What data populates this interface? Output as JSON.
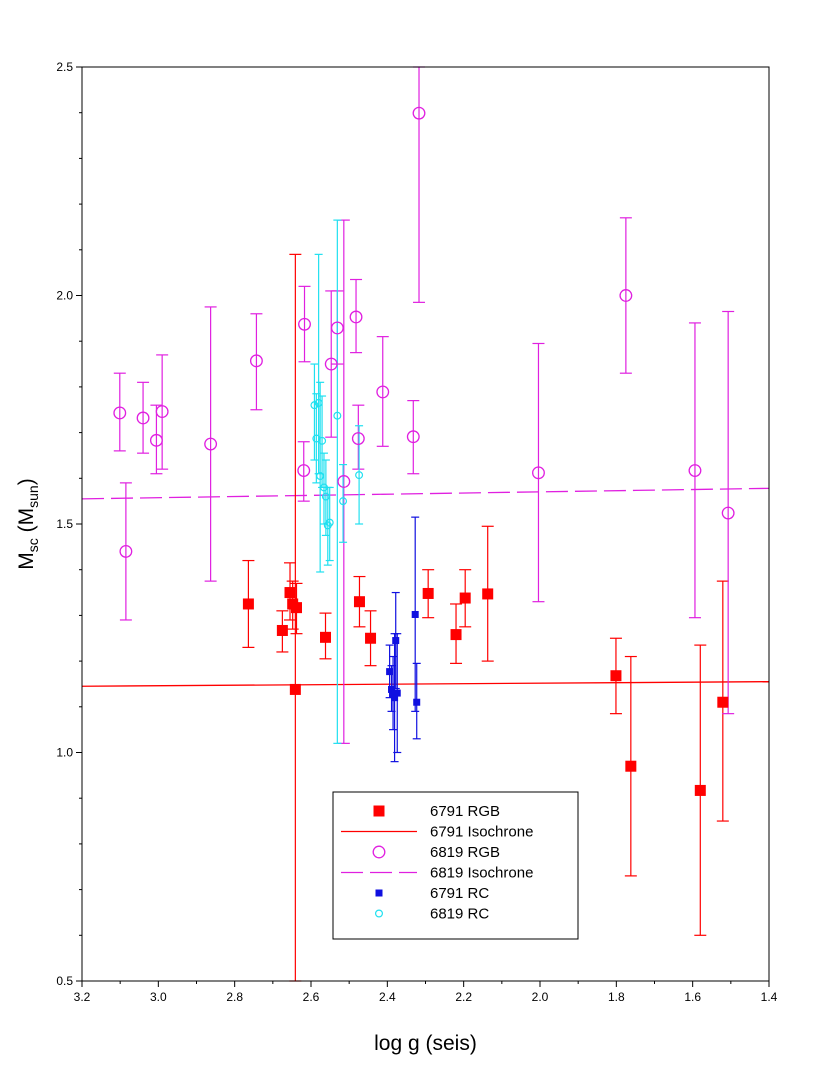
{
  "chart_data": {
    "type": "scatter",
    "title": "",
    "xlabel": "log g (seis)",
    "ylabel": "M",
    "ylabel_sub1": "sc",
    "ylabel_mid": " (M",
    "ylabel_sub2": "sun",
    "ylabel_end": ")",
    "xlim": [
      3.2,
      1.4
    ],
    "ylim": [
      0.5,
      2.5
    ],
    "x_reversed": true,
    "xticks": [
      3.2,
      3.0,
      2.8,
      2.6,
      2.4,
      2.2,
      2.0,
      1.8,
      1.6,
      1.4
    ],
    "xtick_labels": [
      "3.2",
      "3.0",
      "2.8",
      "2.6",
      "2.4",
      "2.2",
      "2.0",
      "1.8",
      "1.6",
      "1.4"
    ],
    "yticks": [
      0.5,
      1.0,
      1.5,
      2.0,
      2.5
    ],
    "ytick_labels": [
      "0.5",
      "1.0",
      "1.5",
      "2.0",
      "2.5"
    ],
    "legend_position": "bottom-center",
    "colors": {
      "rgb_6791": "#ff0000",
      "rgb_6819": "#e020e0",
      "rc_6791": "#1010e0",
      "rc_6819": "#20e0f0"
    },
    "lines": [
      {
        "name": "6791 Isochrone",
        "color": "#ff0000",
        "dash": "solid",
        "x": [
          3.2,
          1.4
        ],
        "y": [
          1.145,
          1.155
        ]
      },
      {
        "name": "6819 Isochrone",
        "color": "#e020e0",
        "dash": "dashed",
        "x": [
          3.2,
          1.4
        ],
        "y": [
          1.555,
          1.578
        ]
      }
    ],
    "series": [
      {
        "name": "6791 RGB",
        "marker": "filled-square",
        "color": "#ff0000",
        "points": [
          {
            "x": 2.764,
            "y": 1.325,
            "lo": 1.23,
            "hi": 1.42
          },
          {
            "x": 2.675,
            "y": 1.267,
            "lo": 1.22,
            "hi": 1.31
          },
          {
            "x": 2.655,
            "y": 1.35,
            "lo": 1.29,
            "hi": 1.415
          },
          {
            "x": 2.648,
            "y": 1.325,
            "lo": 1.27,
            "hi": 1.375
          },
          {
            "x": 2.638,
            "y": 1.317,
            "lo": 1.26,
            "hi": 1.37
          },
          {
            "x": 2.641,
            "y": 1.138,
            "lo": 0.5,
            "hi": 2.09
          },
          {
            "x": 2.562,
            "y": 1.252,
            "lo": 1.205,
            "hi": 1.305
          },
          {
            "x": 2.473,
            "y": 1.33,
            "lo": 1.275,
            "hi": 1.385
          },
          {
            "x": 2.444,
            "y": 1.25,
            "lo": 1.19,
            "hi": 1.31
          },
          {
            "x": 2.293,
            "y": 1.348,
            "lo": 1.295,
            "hi": 1.4
          },
          {
            "x": 2.22,
            "y": 1.258,
            "lo": 1.195,
            "hi": 1.325
          },
          {
            "x": 2.196,
            "y": 1.338,
            "lo": 1.275,
            "hi": 1.4
          },
          {
            "x": 2.137,
            "y": 1.347,
            "lo": 1.2,
            "hi": 1.495
          },
          {
            "x": 1.801,
            "y": 1.168,
            "lo": 1.085,
            "hi": 1.25
          },
          {
            "x": 1.762,
            "y": 0.97,
            "lo": 0.73,
            "hi": 1.21
          },
          {
            "x": 1.58,
            "y": 0.917,
            "lo": 0.6,
            "hi": 1.235
          },
          {
            "x": 1.521,
            "y": 1.11,
            "lo": 0.85,
            "hi": 1.375
          }
        ]
      },
      {
        "name": "6819 RGB",
        "marker": "open-circle",
        "color": "#e020e0",
        "points": [
          {
            "x": 3.101,
            "y": 1.743,
            "lo": 1.66,
            "hi": 1.83
          },
          {
            "x": 3.085,
            "y": 1.44,
            "lo": 1.29,
            "hi": 1.59
          },
          {
            "x": 3.04,
            "y": 1.732,
            "lo": 1.655,
            "hi": 1.81
          },
          {
            "x": 3.005,
            "y": 1.683,
            "lo": 1.61,
            "hi": 1.76
          },
          {
            "x": 2.99,
            "y": 1.746,
            "lo": 1.62,
            "hi": 1.87
          },
          {
            "x": 2.863,
            "y": 1.675,
            "lo": 1.375,
            "hi": 1.975
          },
          {
            "x": 2.743,
            "y": 1.857,
            "lo": 1.75,
            "hi": 1.96
          },
          {
            "x": 2.617,
            "y": 1.937,
            "lo": 1.855,
            "hi": 2.02
          },
          {
            "x": 2.619,
            "y": 1.617,
            "lo": 1.55,
            "hi": 1.68
          },
          {
            "x": 2.547,
            "y": 1.85,
            "lo": 1.69,
            "hi": 2.01
          },
          {
            "x": 2.531,
            "y": 1.929,
            "lo": 1.85,
            "hi": 2.01
          },
          {
            "x": 2.514,
            "y": 1.593,
            "lo": 1.02,
            "hi": 2.165
          },
          {
            "x": 2.482,
            "y": 1.953,
            "lo": 1.875,
            "hi": 2.035
          },
          {
            "x": 2.476,
            "y": 1.687,
            "lo": 1.62,
            "hi": 1.76
          },
          {
            "x": 2.412,
            "y": 1.789,
            "lo": 1.67,
            "hi": 1.91
          },
          {
            "x": 2.332,
            "y": 1.691,
            "lo": 1.61,
            "hi": 1.77
          },
          {
            "x": 2.317,
            "y": 2.399,
            "lo": 1.985,
            "hi": 2.5
          },
          {
            "x": 2.004,
            "y": 1.612,
            "lo": 1.33,
            "hi": 1.895
          },
          {
            "x": 1.775,
            "y": 2.0,
            "lo": 1.83,
            "hi": 2.17
          },
          {
            "x": 1.594,
            "y": 1.617,
            "lo": 1.295,
            "hi": 1.94
          },
          {
            "x": 1.507,
            "y": 1.524,
            "lo": 1.085,
            "hi": 1.965
          }
        ]
      },
      {
        "name": "6791 RC",
        "marker": "filled-square-small",
        "color": "#1010e0",
        "points": [
          {
            "x": 2.394,
            "y": 1.177,
            "lo": 1.12,
            "hi": 1.235
          },
          {
            "x": 2.389,
            "y": 1.138,
            "lo": 1.09,
            "hi": 1.19
          },
          {
            "x": 2.385,
            "y": 1.128,
            "lo": 1.05,
            "hi": 1.21
          },
          {
            "x": 2.381,
            "y": 1.12,
            "lo": 0.98,
            "hi": 1.26
          },
          {
            "x": 2.378,
            "y": 1.245,
            "lo": 1.14,
            "hi": 1.35
          },
          {
            "x": 2.374,
            "y": 1.13,
            "lo": 1.0,
            "hi": 1.26
          },
          {
            "x": 2.327,
            "y": 1.302,
            "lo": 1.09,
            "hi": 1.515
          },
          {
            "x": 2.323,
            "y": 1.11,
            "lo": 1.03,
            "hi": 1.195
          }
        ]
      },
      {
        "name": "6819 RC",
        "marker": "open-circle-small",
        "color": "#20e0f0",
        "points": [
          {
            "x": 2.591,
            "y": 1.76,
            "lo": 1.64,
            "hi": 1.85
          },
          {
            "x": 2.586,
            "y": 1.687,
            "lo": 1.59,
            "hi": 1.785
          },
          {
            "x": 2.58,
            "y": 1.765,
            "lo": 1.61,
            "hi": 2.09
          },
          {
            "x": 2.576,
            "y": 1.605,
            "lo": 1.395,
            "hi": 1.81
          },
          {
            "x": 2.571,
            "y": 1.682,
            "lo": 1.58,
            "hi": 1.78
          },
          {
            "x": 2.566,
            "y": 1.58,
            "lo": 1.5,
            "hi": 1.655
          },
          {
            "x": 2.561,
            "y": 1.56,
            "lo": 1.475,
            "hi": 1.64
          },
          {
            "x": 2.556,
            "y": 1.497,
            "lo": 1.41,
            "hi": 1.58
          },
          {
            "x": 2.551,
            "y": 1.503,
            "lo": 1.42,
            "hi": 1.58
          },
          {
            "x": 2.531,
            "y": 1.737,
            "lo": 1.02,
            "hi": 2.165
          },
          {
            "x": 2.516,
            "y": 1.55,
            "lo": 1.46,
            "hi": 1.63
          },
          {
            "x": 2.474,
            "y": 1.607,
            "lo": 1.5,
            "hi": 1.715
          }
        ]
      }
    ],
    "legend": [
      {
        "label": "6791 RGB",
        "marker": "filled-square",
        "color": "#ff0000"
      },
      {
        "label": "6791 Isochrone",
        "marker": "line-solid",
        "color": "#ff0000"
      },
      {
        "label": "6819 RGB",
        "marker": "open-circle",
        "color": "#e020e0"
      },
      {
        "label": "6819 Isochrone",
        "marker": "line-dashed",
        "color": "#e020e0"
      },
      {
        "label": "6791 RC",
        "marker": "filled-square-small",
        "color": "#1010e0"
      },
      {
        "label": "6819 RC",
        "marker": "open-circle-small",
        "color": "#20e0f0"
      }
    ]
  }
}
